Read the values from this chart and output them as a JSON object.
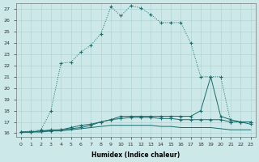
{
  "xlabel": "Humidex (Indice chaleur)",
  "bg_color": "#cce8e8",
  "grid_color": "#aacfcf",
  "line_color": "#1a6b6b",
  "xlim_min": -0.5,
  "xlim_max": 23.5,
  "ylim_min": 15.7,
  "ylim_max": 27.5,
  "yticks": [
    16,
    17,
    18,
    19,
    20,
    21,
    22,
    23,
    24,
    25,
    26,
    27
  ],
  "xticks": [
    0,
    1,
    2,
    3,
    4,
    5,
    6,
    7,
    8,
    9,
    10,
    11,
    12,
    13,
    14,
    15,
    16,
    17,
    18,
    19,
    20,
    21,
    22,
    23
  ],
  "line1_x": [
    0,
    1,
    2,
    3,
    4,
    5,
    6,
    7,
    8,
    9,
    10,
    11,
    12,
    13,
    14,
    15,
    16,
    17,
    18,
    19,
    20,
    21,
    22,
    23
  ],
  "line1_y": [
    16.1,
    16.2,
    16.3,
    18.0,
    22.2,
    22.3,
    23.2,
    23.8,
    24.8,
    27.2,
    26.4,
    27.3,
    27.1,
    26.5,
    25.8,
    25.8,
    25.8,
    24.0,
    21.0,
    21.0,
    21.0,
    17.0,
    17.0,
    17.0
  ],
  "line2_x": [
    0,
    1,
    2,
    3,
    4,
    5,
    6,
    7,
    8,
    9,
    10,
    11,
    12,
    13,
    14,
    15,
    16,
    17,
    18,
    19,
    20,
    21,
    22,
    23
  ],
  "line2_y": [
    16.1,
    16.1,
    16.2,
    16.2,
    16.3,
    16.4,
    16.5,
    16.7,
    17.0,
    17.2,
    17.5,
    17.5,
    17.5,
    17.5,
    17.5,
    17.5,
    17.5,
    17.5,
    18.0,
    21.0,
    17.5,
    17.2,
    17.0,
    17.0
  ],
  "line3_x": [
    0,
    1,
    2,
    3,
    4,
    5,
    6,
    7,
    8,
    9,
    10,
    11,
    12,
    13,
    14,
    15,
    16,
    17,
    18,
    19,
    20,
    21,
    22,
    23
  ],
  "line3_y": [
    16.1,
    16.1,
    16.2,
    16.3,
    16.3,
    16.5,
    16.7,
    16.8,
    17.0,
    17.2,
    17.3,
    17.4,
    17.4,
    17.4,
    17.3,
    17.3,
    17.2,
    17.2,
    17.2,
    17.2,
    17.2,
    17.0,
    17.0,
    16.8
  ],
  "line4_x": [
    0,
    1,
    2,
    3,
    4,
    5,
    6,
    7,
    8,
    9,
    10,
    11,
    12,
    13,
    14,
    15,
    16,
    17,
    18,
    19,
    20,
    21,
    22,
    23
  ],
  "line4_y": [
    16.1,
    16.1,
    16.1,
    16.2,
    16.2,
    16.3,
    16.4,
    16.5,
    16.6,
    16.7,
    16.7,
    16.7,
    16.7,
    16.7,
    16.6,
    16.6,
    16.5,
    16.5,
    16.5,
    16.5,
    16.4,
    16.3,
    16.3,
    16.3
  ]
}
